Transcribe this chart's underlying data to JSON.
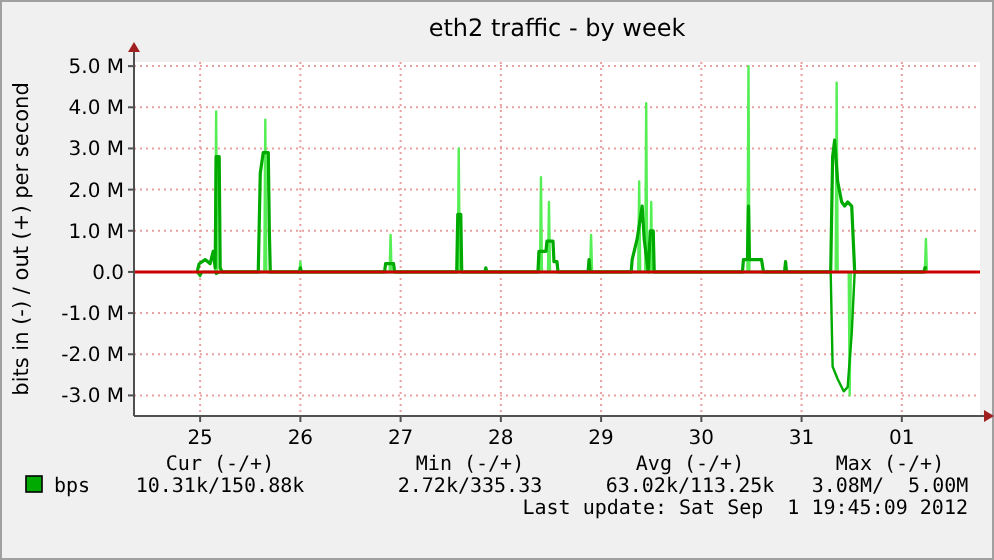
{
  "chart_data": {
    "type": "line",
    "title": "eth2 traffic - by week",
    "ylabel": "bits in (-) / out (+) per second",
    "xlim": [
      "2012-08-24T08:10",
      "2012-09-01T18:43"
    ],
    "xticks": [
      {
        "value": "2012-08-25",
        "label": "25"
      },
      {
        "value": "2012-08-26",
        "label": "26"
      },
      {
        "value": "2012-08-27",
        "label": "27"
      },
      {
        "value": "2012-08-28",
        "label": "28"
      },
      {
        "value": "2012-08-29",
        "label": "29"
      },
      {
        "value": "2012-08-30",
        "label": "30"
      },
      {
        "value": "2012-08-31",
        "label": "31"
      },
      {
        "value": "2012-09-01",
        "label": "01"
      }
    ],
    "ylim": [
      -3.5,
      5.1
    ],
    "yticks": [
      {
        "value": -3,
        "label": "-3.0 M"
      },
      {
        "value": -2,
        "label": "-2.0 M"
      },
      {
        "value": -1,
        "label": "-1.0 M"
      },
      {
        "value": 0,
        "label": "0.0"
      },
      {
        "value": 1,
        "label": "1.0 M"
      },
      {
        "value": 2,
        "label": "2.0 M"
      },
      {
        "value": 3,
        "label": "3.0 M"
      },
      {
        "value": 4,
        "label": "4.0 M"
      },
      {
        "value": 5,
        "label": "5.0 M"
      }
    ],
    "grid": true,
    "legend": "bottom",
    "line_style": "solid",
    "series": [
      {
        "color": "#55ee55",
        "x": [
          "2012-08-25T03:36",
          "2012-08-25T03:50",
          "2012-08-25T04:05",
          "2012-08-25T15:22",
          "2012-08-25T15:36",
          "2012-08-25T15:50",
          "2012-08-25T23:46",
          "2012-08-26T00:00",
          "2012-08-26T00:14",
          "2012-08-26T21:22",
          "2012-08-26T21:36",
          "2012-08-26T21:50",
          "2012-08-27T13:41",
          "2012-08-27T13:55",
          "2012-08-27T14:10",
          "2012-08-28T09:22",
          "2012-08-28T09:36",
          "2012-08-28T09:50",
          "2012-08-28T11:17",
          "2012-08-28T11:31",
          "2012-08-28T11:46",
          "2012-08-28T21:22",
          "2012-08-28T21:36",
          "2012-08-28T21:50",
          "2012-08-29T08:53",
          "2012-08-29T09:07",
          "2012-08-29T09:22",
          "2012-08-29T10:34",
          "2012-08-29T10:48",
          "2012-08-29T11:02",
          "2012-08-29T11:46",
          "2012-08-29T12:00",
          "2012-08-29T12:14",
          "2012-08-30T11:02",
          "2012-08-30T11:17",
          "2012-08-30T11:31",
          "2012-08-31T08:10",
          "2012-08-31T08:24",
          "2012-08-31T08:38",
          "2012-08-31T11:17",
          "2012-08-31T11:31",
          "2012-08-31T11:46",
          "2012-09-01T05:31",
          "2012-09-01T05:46",
          "2012-09-01T06:00"
        ],
        "values": [
          0,
          3.9,
          0,
          0,
          3.7,
          0,
          0,
          0.25,
          0,
          0,
          0.9,
          0,
          0,
          3.0,
          0,
          0,
          2.3,
          0,
          0,
          1.7,
          0,
          0,
          0.9,
          0,
          0,
          2.2,
          0,
          0,
          4.1,
          0,
          0,
          1.7,
          0,
          0,
          5.0,
          0,
          0,
          4.6,
          0,
          0,
          -3.0,
          0,
          0,
          0.8,
          0
        ]
      },
      {
        "name": "bps",
        "color": "#00aa00",
        "x": [
          "2012-08-24T23:17",
          "2012-08-24T23:46",
          "2012-08-25T01:12",
          "2012-08-25T02:24",
          "2012-08-25T03:07",
          "2012-08-25T03:36",
          "2012-08-25T03:50",
          "2012-08-25T04:34",
          "2012-08-25T04:48",
          "2012-08-25T05:17",
          "2012-08-25T13:55",
          "2012-08-25T14:24",
          "2012-08-25T15:07",
          "2012-08-25T16:19",
          "2012-08-25T16:34",
          "2012-08-25T16:48",
          "2012-08-25T23:46",
          "2012-08-26T00:00",
          "2012-08-26T00:14",
          "2012-08-26T20:10",
          "2012-08-26T20:24",
          "2012-08-26T22:19",
          "2012-08-26T22:34",
          "2012-08-27T13:26",
          "2012-08-27T13:41",
          "2012-08-27T14:24",
          "2012-08-27T14:38",
          "2012-08-27T20:10",
          "2012-08-27T20:24",
          "2012-08-27T20:38",
          "2012-08-28T08:53",
          "2012-08-28T09:07",
          "2012-08-28T10:48",
          "2012-08-28T11:02",
          "2012-08-28T12:29",
          "2012-08-28T12:43",
          "2012-08-28T13:26",
          "2012-08-28T13:41",
          "2012-08-28T20:53",
          "2012-08-28T21:07",
          "2012-08-28T21:22",
          "2012-08-29T07:12",
          "2012-08-29T07:26",
          "2012-08-29T08:38",
          "2012-08-29T09:50",
          "2012-08-29T10:19",
          "2012-08-29T11:17",
          "2012-08-29T11:46",
          "2012-08-29T12:29",
          "2012-08-29T12:43",
          "2012-08-30T09:50",
          "2012-08-30T10:05",
          "2012-08-30T11:02",
          "2012-08-30T11:17",
          "2012-08-30T11:31",
          "2012-08-30T14:24",
          "2012-08-30T14:53",
          "2012-08-30T19:55",
          "2012-08-30T20:10",
          "2012-08-30T20:24",
          "2012-08-31T06:58",
          "2012-08-31T07:26",
          "2012-08-31T07:55",
          "2012-08-31T08:38",
          "2012-08-31T09:36",
          "2012-08-31T10:19",
          "2012-08-31T11:02",
          "2012-08-31T12:00",
          "2012-08-31T12:43",
          "2012-09-01T05:17",
          "2012-09-01T05:31",
          "2012-09-01T06:00"
        ],
        "values": [
          0,
          0.2,
          0.3,
          0.2,
          0.5,
          0.1,
          2.8,
          2.8,
          0.1,
          0,
          0,
          2.4,
          2.9,
          2.9,
          1.0,
          0,
          0,
          0.1,
          0,
          0,
          0.2,
          0.2,
          0,
          0,
          1.4,
          1.4,
          0,
          0,
          0.1,
          0,
          0,
          0.5,
          0.5,
          0.75,
          0.75,
          0.25,
          0.25,
          0,
          0,
          0.3,
          0,
          0,
          0.3,
          0.8,
          1.6,
          0.8,
          0,
          1.0,
          1.0,
          0,
          0,
          0.3,
          0.3,
          1.6,
          0.3,
          0.3,
          0,
          0,
          0.25,
          0,
          0,
          2.8,
          3.2,
          2.2,
          1.7,
          1.6,
          1.7,
          1.6,
          0,
          0,
          0.1,
          0.1
        ]
      },
      {
        "color": "#00aa00",
        "x": [
          "2012-08-24T23:17",
          "2012-08-25T00:00",
          "2012-08-25T00:29",
          "2012-08-25T03:36",
          "2012-08-25T03:50",
          "2012-08-25T04:48",
          "2012-08-31T06:58",
          "2012-08-31T07:26",
          "2012-08-31T08:38",
          "2012-08-31T10:05",
          "2012-08-31T11:02",
          "2012-08-31T12:00",
          "2012-08-31T12:43",
          "2012-09-01T06:00"
        ],
        "values": [
          0,
          -0.1,
          0,
          0,
          -0.05,
          0,
          0,
          -2.3,
          -2.6,
          -2.9,
          -2.8,
          -1.5,
          0,
          0
        ]
      }
    ],
    "ref_lines": [
      {
        "axis": "y",
        "value": 0,
        "color": "#cc0000"
      }
    ],
    "annotations": [
      "Cur (-/+)",
      "Min (-/+)",
      "Avg (-/+)",
      "Max (-/+)",
      "10.31k/150.88k",
      "2.72k/335.33",
      "63.02k/113.25k",
      "3.08M/  5.00M",
      "Last update: Sat Sep  1 19:45:09 2012"
    ]
  }
}
